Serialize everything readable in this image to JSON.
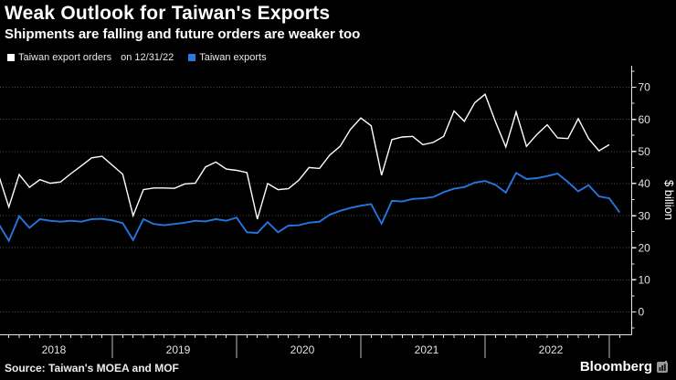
{
  "header": {
    "title": "Weak Outlook for Taiwan's Exports",
    "subtitle": "Shipments are falling and future orders are weaker too"
  },
  "legend": {
    "items": [
      {
        "id": "export-orders",
        "label": "Taiwan export orders",
        "color": "#ffffff"
      },
      {
        "id": "exports",
        "label": "Taiwan exports",
        "color": "#2b78de"
      }
    ],
    "note": "on 12/31/22"
  },
  "footer": {
    "source": "Source: Taiwan's MOEA and MOF",
    "brand": "Bloomberg"
  },
  "colors": {
    "background": "#000000",
    "orders_line": "#ffffff",
    "exports_line": "#2475df",
    "grid": "#525252",
    "axis": "#e6e6e6",
    "tick_label": "#e2e2e2",
    "year_separator": "#bdbdbd",
    "unit_label": "#ffffff"
  },
  "chart_data": {
    "type": "line",
    "title": "Weak Outlook for Taiwan's Exports",
    "subtitle": "Shipments are falling and future orders are weaker too",
    "xlabel": "",
    "ylabel": "$ billion",
    "ylim": [
      -7,
      77
    ],
    "yticks": [
      0,
      10,
      20,
      30,
      40,
      50,
      60,
      70
    ],
    "grid": "horizontal-dotted",
    "legend_position": "top-left",
    "x_frequency": "monthly",
    "x_year_labels": [
      "2018",
      "2019",
      "2020",
      "2021",
      "2022"
    ],
    "categories": [
      "2018-01",
      "2018-02",
      "2018-03",
      "2018-04",
      "2018-05",
      "2018-06",
      "2018-07",
      "2018-08",
      "2018-09",
      "2018-10",
      "2018-11",
      "2018-12",
      "2019-01",
      "2019-02",
      "2019-03",
      "2019-04",
      "2019-05",
      "2019-06",
      "2019-07",
      "2019-08",
      "2019-09",
      "2019-10",
      "2019-11",
      "2019-12",
      "2020-01",
      "2020-02",
      "2020-03",
      "2020-04",
      "2020-05",
      "2020-06",
      "2020-07",
      "2020-08",
      "2020-09",
      "2020-10",
      "2020-11",
      "2020-12",
      "2021-01",
      "2021-02",
      "2021-03",
      "2021-04",
      "2021-05",
      "2021-06",
      "2021-07",
      "2021-08",
      "2021-09",
      "2021-10",
      "2021-11",
      "2021-12",
      "2022-01",
      "2022-02",
      "2022-03",
      "2022-04",
      "2022-05",
      "2022-06",
      "2022-07",
      "2022-08",
      "2022-09",
      "2022-10",
      "2022-11",
      "2022-12",
      "2023-01"
    ],
    "series": [
      {
        "name": "Taiwan export orders",
        "color": "#ffffff",
        "as_of": "12/31/22",
        "values": [
          42.8,
          32.7,
          42.8,
          38.8,
          41.2,
          40.1,
          40.5,
          43.1,
          45.5,
          48.0,
          48.5,
          45.7,
          42.9,
          30.0,
          38.1,
          38.6,
          38.6,
          38.5,
          39.9,
          40.1,
          45.2,
          46.7,
          44.5,
          44.1,
          43.4,
          28.9,
          40.0,
          38.1,
          38.4,
          41.0,
          45.0,
          44.7,
          48.9,
          51.6,
          56.9,
          60.4,
          58.0,
          42.6,
          53.7,
          54.5,
          54.7,
          52.1,
          52.8,
          54.7,
          62.6,
          59.4,
          65.2,
          67.8,
          59.3,
          51.4,
          62.3,
          51.6,
          55.3,
          58.3,
          54.2,
          54.0,
          60.2,
          54.0,
          50.2,
          52.1
        ]
      },
      {
        "name": "Taiwan exports",
        "color": "#2475df",
        "values": [
          27.5,
          22.2,
          29.8,
          26.2,
          28.9,
          28.4,
          28.1,
          28.4,
          28.1,
          28.9,
          29.0,
          28.5,
          27.7,
          22.4,
          28.9,
          27.4,
          27.0,
          27.4,
          27.8,
          28.4,
          28.2,
          28.9,
          28.4,
          29.4,
          24.8,
          24.6,
          28.0,
          24.8,
          26.9,
          27.0,
          27.8,
          28.1,
          30.3,
          31.5,
          32.4,
          33.1,
          33.6,
          27.5,
          34.6,
          34.4,
          35.2,
          35.4,
          35.8,
          37.3,
          38.4,
          38.9,
          40.3,
          40.8,
          39.6,
          37.2,
          43.3,
          41.4,
          41.7,
          42.3,
          43.1,
          40.5,
          37.6,
          39.5,
          36.0,
          35.4,
          31.0
        ]
      }
    ]
  }
}
